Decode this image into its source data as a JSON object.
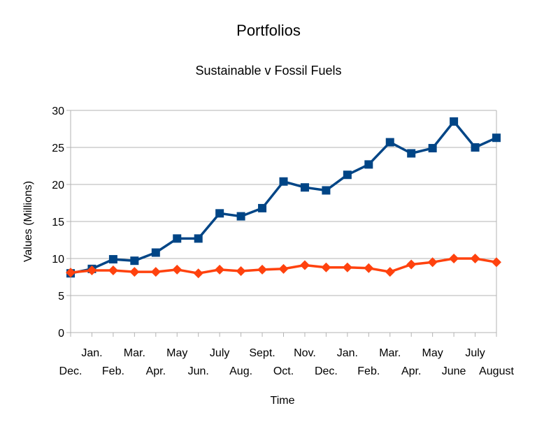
{
  "chart_data": {
    "type": "line",
    "title": "Portfolios",
    "subtitle": "Sustainable v Fossil Fuels",
    "xlabel": "Time",
    "ylabel": "Values (Millions)",
    "ylim": [
      0,
      30
    ],
    "yticks": [
      "0",
      "5",
      "10",
      "15",
      "20",
      "25",
      "30"
    ],
    "grid": true,
    "legend": "none",
    "categories": [
      "Dec.",
      "Jan.",
      "Feb.",
      "Mar.",
      "Apr.",
      "May",
      "Jun.",
      "July",
      "Aug.",
      "Sept.",
      "Oct.",
      "Nov.",
      "Dec.",
      "Jan.",
      "Feb.",
      "Mar.",
      "Apr.",
      "May",
      "June",
      "July",
      "August"
    ],
    "series": [
      {
        "color": "#004586",
        "marker": "square",
        "values": [
          8.0,
          8.6,
          9.9,
          9.7,
          10.8,
          12.7,
          12.7,
          16.1,
          15.7,
          16.8,
          20.4,
          19.6,
          19.2,
          21.3,
          22.7,
          25.7,
          24.2,
          24.9,
          28.5,
          25.0,
          26.3
        ]
      },
      {
        "color": "#ff420e",
        "marker": "diamond",
        "values": [
          8.1,
          8.4,
          8.4,
          8.2,
          8.2,
          8.5,
          8.0,
          8.5,
          8.3,
          8.5,
          8.6,
          9.1,
          8.8,
          8.8,
          8.7,
          8.2,
          9.2,
          9.5,
          10.0,
          10.0,
          9.5
        ]
      }
    ]
  }
}
